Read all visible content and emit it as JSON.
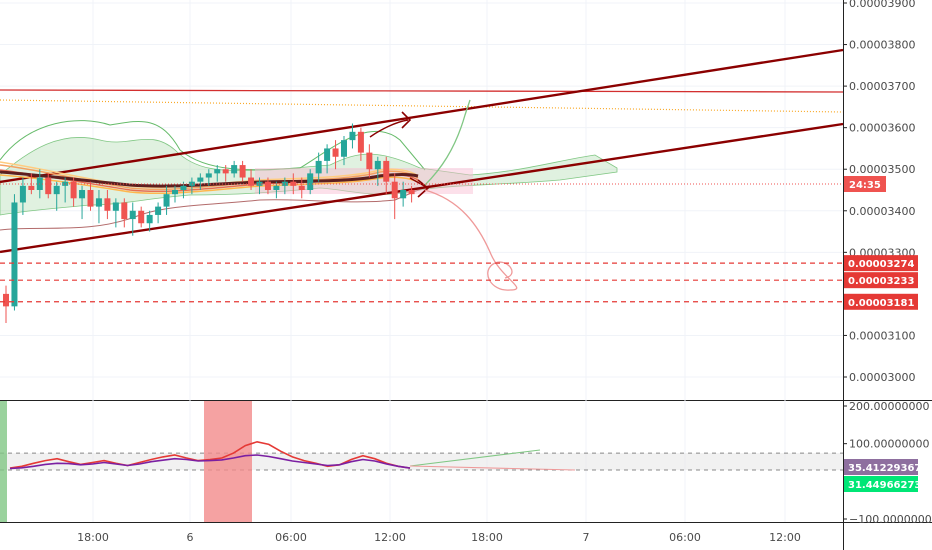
{
  "chart_data": [
    {
      "type": "candlestick",
      "title": "",
      "y_axis_side": "right",
      "ylim": [
        2.94e-05,
        3.92e-05
      ],
      "y_ticks": [
        {
          "value": 3.9e-05,
          "label": "0.00003900"
        },
        {
          "value": 3.8e-05,
          "label": "0.00003800"
        },
        {
          "value": 3.7e-05,
          "label": "0.00003700"
        },
        {
          "value": 3.6e-05,
          "label": "0.00003600"
        },
        {
          "value": 3.5e-05,
          "label": "0.00003500"
        },
        {
          "value": 3.4e-05,
          "label": "0.00003400"
        },
        {
          "value": 3.3e-05,
          "label": "0.00003300"
        },
        {
          "value": 3.1e-05,
          "label": "0.00003100"
        },
        {
          "value": 3e-05,
          "label": "0.00003000"
        }
      ],
      "ohlc": [
        [
          3.2,
          3.22,
          3.13,
          3.17
        ],
        [
          3.17,
          3.44,
          3.16,
          3.42
        ],
        [
          3.42,
          3.48,
          3.39,
          3.46
        ],
        [
          3.46,
          3.49,
          3.44,
          3.45
        ],
        [
          3.45,
          3.5,
          3.43,
          3.48
        ],
        [
          3.48,
          3.49,
          3.43,
          3.44
        ],
        [
          3.44,
          3.47,
          3.4,
          3.46
        ],
        [
          3.46,
          3.48,
          3.42,
          3.47
        ],
        [
          3.47,
          3.48,
          3.41,
          3.43
        ],
        [
          3.43,
          3.46,
          3.38,
          3.45
        ],
        [
          3.45,
          3.47,
          3.4,
          3.41
        ],
        [
          3.41,
          3.45,
          3.37,
          3.43
        ],
        [
          3.43,
          3.45,
          3.38,
          3.4
        ],
        [
          3.4,
          3.43,
          3.36,
          3.42
        ],
        [
          3.42,
          3.43,
          3.36,
          3.38
        ],
        [
          3.38,
          3.42,
          3.34,
          3.4
        ],
        [
          3.4,
          3.41,
          3.36,
          3.37
        ],
        [
          3.37,
          3.4,
          3.35,
          3.39
        ],
        [
          3.39,
          3.42,
          3.37,
          3.41
        ],
        [
          3.41,
          3.46,
          3.39,
          3.44
        ],
        [
          3.44,
          3.46,
          3.42,
          3.45
        ],
        [
          3.45,
          3.47,
          3.43,
          3.46
        ],
        [
          3.46,
          3.48,
          3.44,
          3.47
        ],
        [
          3.47,
          3.49,
          3.45,
          3.48
        ],
        [
          3.48,
          3.5,
          3.46,
          3.49
        ],
        [
          3.49,
          3.51,
          3.47,
          3.5
        ],
        [
          3.5,
          3.51,
          3.47,
          3.49
        ],
        [
          3.49,
          3.52,
          3.48,
          3.51
        ],
        [
          3.51,
          3.52,
          3.47,
          3.48
        ],
        [
          3.48,
          3.5,
          3.45,
          3.46
        ],
        [
          3.46,
          3.48,
          3.44,
          3.47
        ],
        [
          3.47,
          3.48,
          3.44,
          3.45
        ],
        [
          3.45,
          3.47,
          3.43,
          3.46
        ],
        [
          3.46,
          3.48,
          3.44,
          3.47
        ],
        [
          3.47,
          3.49,
          3.44,
          3.46
        ],
        [
          3.46,
          3.48,
          3.43,
          3.45
        ],
        [
          3.45,
          3.5,
          3.44,
          3.49
        ],
        [
          3.49,
          3.54,
          3.47,
          3.52
        ],
        [
          3.52,
          3.56,
          3.49,
          3.55
        ],
        [
          3.55,
          3.57,
          3.5,
          3.53
        ],
        [
          3.53,
          3.58,
          3.51,
          3.57
        ],
        [
          3.57,
          3.61,
          3.55,
          3.59
        ],
        [
          3.59,
          3.6,
          3.52,
          3.54
        ],
        [
          3.54,
          3.56,
          3.48,
          3.5
        ],
        [
          3.5,
          3.53,
          3.46,
          3.52
        ],
        [
          3.52,
          3.53,
          3.44,
          3.47
        ],
        [
          3.47,
          3.49,
          3.38,
          3.43
        ],
        [
          3.43,
          3.47,
          3.41,
          3.45
        ],
        [
          3.45,
          3.46,
          3.42,
          3.44
        ]
      ],
      "price_scale": 1e-05,
      "trend_lines": [
        {
          "name": "upper-channel",
          "color": "#8b0000"
        },
        {
          "name": "lower-channel",
          "color": "#8b0000"
        },
        {
          "name": "resistance",
          "color": "#d32f2f"
        }
      ],
      "support_levels": [
        {
          "value": 3.274e-05,
          "label": "0.00003274"
        },
        {
          "value": 3.233e-05,
          "label": "0.00003233"
        },
        {
          "value": 3.181e-05,
          "label": "0.00003181"
        }
      ],
      "last_price_badge": "24:35",
      "colors": {
        "up": "#26a69a",
        "down": "#ef5350",
        "channel": "#8b0000",
        "support": "#e53935",
        "cloud": "#a5d6a7"
      }
    },
    {
      "type": "line",
      "title": "",
      "y_axis_side": "right",
      "ylim": [
        -110,
        230
      ],
      "y_ticks": [
        {
          "value": 200,
          "label": "200.00000000"
        },
        {
          "value": 100,
          "label": "100.00000000"
        },
        {
          "value": -100,
          "label": "−100.00000000"
        }
      ],
      "reference_lines": [
        75,
        30
      ],
      "series": [
        {
          "color": "#e53935",
          "values": [
            35,
            40,
            48,
            55,
            60,
            52,
            45,
            50,
            55,
            48,
            42,
            50,
            58,
            65,
            70,
            62,
            55,
            58,
            62,
            75,
            95,
            105,
            98,
            80,
            65,
            55,
            48,
            40,
            44,
            58,
            68,
            60,
            48,
            40,
            35
          ]
        },
        {
          "color": "#7b1fa2",
          "values": [
            34,
            36,
            40,
            45,
            48,
            47,
            44,
            46,
            50,
            46,
            42,
            46,
            52,
            56,
            60,
            58,
            54,
            55,
            57,
            62,
            68,
            70,
            66,
            60,
            54,
            50,
            46,
            42,
            44,
            52,
            58,
            54,
            46,
            40,
            35
          ]
        }
      ],
      "badges": [
        {
          "label": "35.41229367",
          "color": "#8e6f9f"
        },
        {
          "label": "31.44966273",
          "color": "#00e676"
        }
      ],
      "highlight_color": "#f28b8b"
    }
  ],
  "x_axis": {
    "ticks": [
      "18:00",
      "6",
      "06:00",
      "12:00",
      "18:00",
      "7",
      "06:00",
      "12:00"
    ]
  }
}
